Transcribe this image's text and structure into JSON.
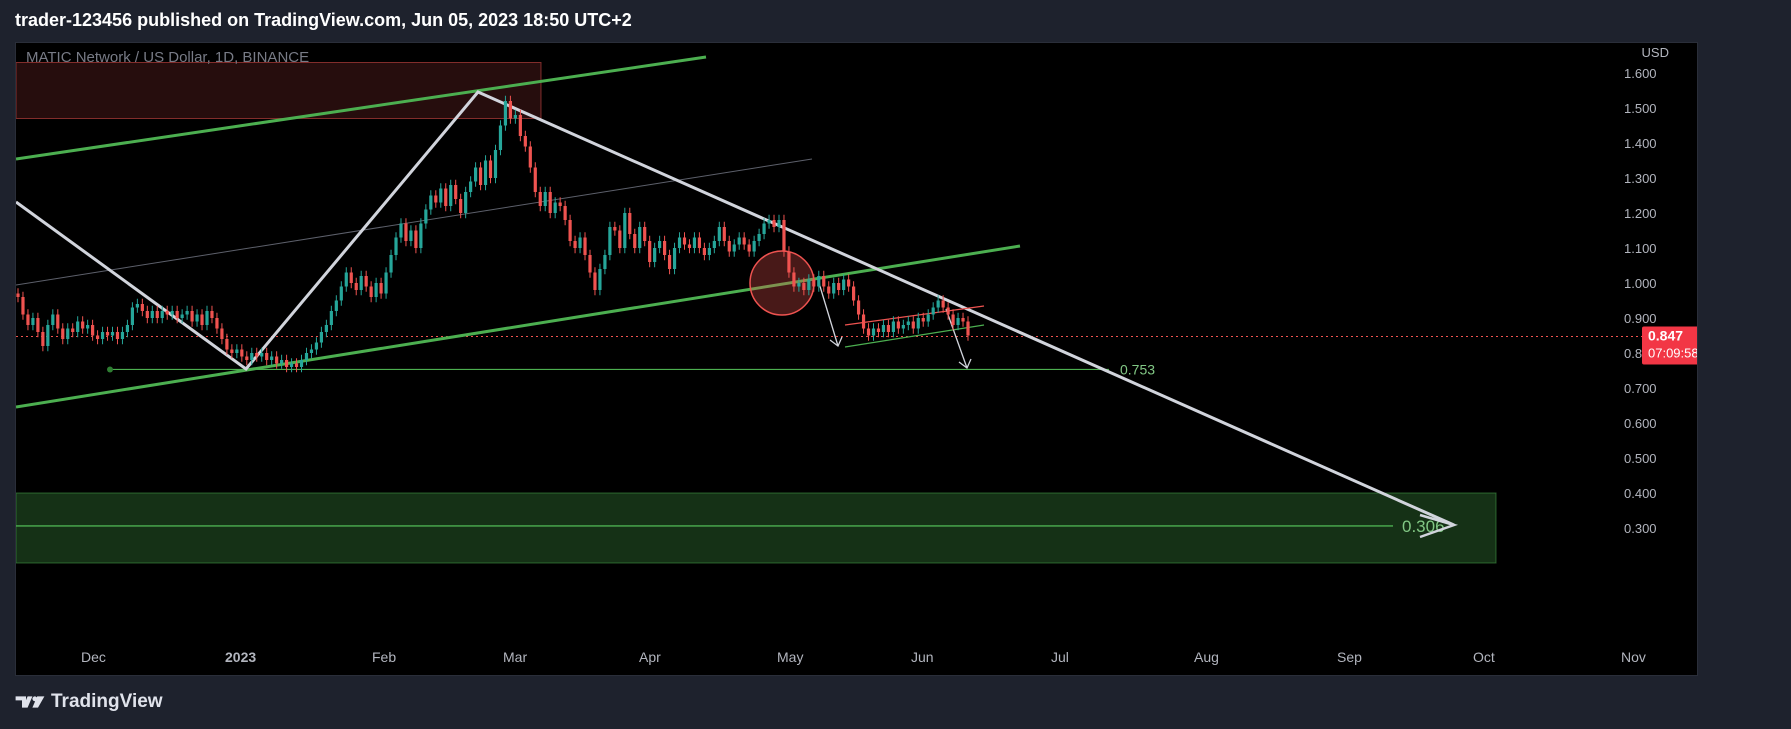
{
  "header": {
    "published": "trader-123456 published on TradingView.com, Jun 05, 2023 18:50 UTC+2"
  },
  "footer": {
    "brand": "TradingView",
    "logo_icon": "tradingview-logo-icon"
  },
  "chart_data": {
    "type": "candlestick",
    "symbol_title": "MATIC Network / US Dollar, 1D, BINANCE",
    "currency": "USD",
    "y_ticks": [
      "1.600",
      "1.500",
      "1.400",
      "1.300",
      "1.200",
      "1.100",
      "1.000",
      "0.900",
      "0.800",
      "0.700",
      "0.600",
      "0.500",
      "0.400",
      "0.300"
    ],
    "y_range": [
      0.2,
      1.65
    ],
    "x_ticks": [
      "Dec",
      "2023",
      "Feb",
      "Mar",
      "Apr",
      "May",
      "Jun",
      "Jul",
      "Aug",
      "Sep",
      "Oct",
      "Nov"
    ],
    "grid": false,
    "last_price": {
      "value": "0.847",
      "countdown": "07:09:58"
    },
    "levels": [
      {
        "label": "0.753",
        "value": 0.753
      },
      {
        "label": "0.306",
        "value": 0.306
      }
    ],
    "zones": [
      {
        "name": "resistance-zone",
        "from": 1.47,
        "to": 1.63
      },
      {
        "name": "support-zone",
        "from": 0.2,
        "to": 0.4
      }
    ],
    "colors": {
      "up": "#26a69a",
      "down": "#ef5350",
      "channel": "#4caf50",
      "trend": "#d1d4dc",
      "price_label": "#f23645"
    },
    "candles": [
      [
        0.97,
        0.96
      ],
      [
        0.96,
        0.91
      ],
      [
        0.91,
        0.88
      ],
      [
        0.88,
        0.9
      ],
      [
        0.9,
        0.86
      ],
      [
        0.86,
        0.82
      ],
      [
        0.82,
        0.88
      ],
      [
        0.88,
        0.91
      ],
      [
        0.91,
        0.87
      ],
      [
        0.87,
        0.84
      ],
      [
        0.84,
        0.87
      ],
      [
        0.87,
        0.86
      ],
      [
        0.86,
        0.89
      ],
      [
        0.89,
        0.87
      ],
      [
        0.87,
        0.88
      ],
      [
        0.88,
        0.85
      ],
      [
        0.85,
        0.84
      ],
      [
        0.84,
        0.86
      ],
      [
        0.86,
        0.85
      ],
      [
        0.85,
        0.86
      ],
      [
        0.86,
        0.84
      ],
      [
        0.84,
        0.86
      ],
      [
        0.86,
        0.88
      ],
      [
        0.88,
        0.93
      ],
      [
        0.93,
        0.94
      ],
      [
        0.94,
        0.92
      ],
      [
        0.92,
        0.9
      ],
      [
        0.9,
        0.92
      ],
      [
        0.92,
        0.9
      ],
      [
        0.9,
        0.92
      ],
      [
        0.92,
        0.91
      ],
      [
        0.91,
        0.92
      ],
      [
        0.92,
        0.9
      ],
      [
        0.9,
        0.91
      ],
      [
        0.91,
        0.92
      ],
      [
        0.92,
        0.89
      ],
      [
        0.89,
        0.91
      ],
      [
        0.91,
        0.88
      ],
      [
        0.88,
        0.92
      ],
      [
        0.92,
        0.9
      ],
      [
        0.9,
        0.87
      ],
      [
        0.87,
        0.84
      ],
      [
        0.84,
        0.81
      ],
      [
        0.81,
        0.8
      ],
      [
        0.8,
        0.81
      ],
      [
        0.81,
        0.79
      ],
      [
        0.79,
        0.78
      ],
      [
        0.78,
        0.8
      ],
      [
        0.8,
        0.79
      ],
      [
        0.79,
        0.8
      ],
      [
        0.8,
        0.78
      ],
      [
        0.78,
        0.79
      ],
      [
        0.79,
        0.77
      ],
      [
        0.77,
        0.78
      ],
      [
        0.78,
        0.76
      ],
      [
        0.76,
        0.77
      ],
      [
        0.77,
        0.76
      ],
      [
        0.76,
        0.78
      ],
      [
        0.78,
        0.8
      ],
      [
        0.8,
        0.81
      ],
      [
        0.81,
        0.83
      ],
      [
        0.83,
        0.86
      ],
      [
        0.86,
        0.88
      ],
      [
        0.88,
        0.92
      ],
      [
        0.92,
        0.95
      ],
      [
        0.95,
        0.99
      ],
      [
        0.99,
        1.03
      ],
      [
        1.03,
        1.0
      ],
      [
        1.0,
        0.98
      ],
      [
        0.98,
        1.02
      ],
      [
        1.02,
        0.99
      ],
      [
        0.99,
        0.96
      ],
      [
        0.96,
        1.0
      ],
      [
        1.0,
        0.97
      ],
      [
        0.97,
        1.03
      ],
      [
        1.03,
        1.08
      ],
      [
        1.08,
        1.13
      ],
      [
        1.13,
        1.17
      ],
      [
        1.17,
        1.12
      ],
      [
        1.12,
        1.15
      ],
      [
        1.15,
        1.1
      ],
      [
        1.1,
        1.17
      ],
      [
        1.17,
        1.21
      ],
      [
        1.21,
        1.25
      ],
      [
        1.25,
        1.23
      ],
      [
        1.23,
        1.27
      ],
      [
        1.27,
        1.22
      ],
      [
        1.22,
        1.28
      ],
      [
        1.28,
        1.24
      ],
      [
        1.24,
        1.2
      ],
      [
        1.2,
        1.26
      ],
      [
        1.26,
        1.29
      ],
      [
        1.29,
        1.33
      ],
      [
        1.33,
        1.28
      ],
      [
        1.28,
        1.35
      ],
      [
        1.35,
        1.3
      ],
      [
        1.3,
        1.38
      ],
      [
        1.38,
        1.45
      ],
      [
        1.45,
        1.52
      ],
      [
        1.52,
        1.47
      ],
      [
        1.47,
        1.48
      ],
      [
        1.48,
        1.42
      ],
      [
        1.42,
        1.39
      ],
      [
        1.39,
        1.33
      ],
      [
        1.33,
        1.26
      ],
      [
        1.26,
        1.22
      ],
      [
        1.22,
        1.26
      ],
      [
        1.26,
        1.2
      ],
      [
        1.2,
        1.23
      ],
      [
        1.23,
        1.22
      ],
      [
        1.22,
        1.18
      ],
      [
        1.18,
        1.12
      ],
      [
        1.12,
        1.1
      ],
      [
        1.1,
        1.13
      ],
      [
        1.13,
        1.08
      ],
      [
        1.08,
        1.03
      ],
      [
        1.03,
        0.98
      ],
      [
        0.98,
        1.04
      ],
      [
        1.04,
        1.08
      ],
      [
        1.08,
        1.16
      ],
      [
        1.16,
        1.15
      ],
      [
        1.15,
        1.1
      ],
      [
        1.1,
        1.2
      ],
      [
        1.2,
        1.14
      ],
      [
        1.14,
        1.1
      ],
      [
        1.1,
        1.16
      ],
      [
        1.16,
        1.12
      ],
      [
        1.12,
        1.06
      ],
      [
        1.06,
        1.1
      ],
      [
        1.1,
        1.12
      ],
      [
        1.12,
        1.08
      ],
      [
        1.08,
        1.04
      ],
      [
        1.04,
        1.1
      ],
      [
        1.1,
        1.13
      ],
      [
        1.13,
        1.11
      ],
      [
        1.11,
        1.1
      ],
      [
        1.1,
        1.13
      ],
      [
        1.13,
        1.1
      ],
      [
        1.1,
        1.08
      ],
      [
        1.08,
        1.1
      ],
      [
        1.1,
        1.12
      ],
      [
        1.12,
        1.16
      ],
      [
        1.16,
        1.12
      ],
      [
        1.12,
        1.09
      ],
      [
        1.09,
        1.11
      ],
      [
        1.11,
        1.13
      ],
      [
        1.13,
        1.11
      ],
      [
        1.11,
        1.09
      ],
      [
        1.09,
        1.12
      ],
      [
        1.12,
        1.14
      ],
      [
        1.14,
        1.17
      ],
      [
        1.17,
        1.18
      ],
      [
        1.18,
        1.16
      ],
      [
        1.16,
        1.18
      ],
      [
        1.18,
        1.09
      ],
      [
        1.09,
        1.03
      ],
      [
        1.03,
        0.99
      ],
      [
        0.99,
        1.0
      ],
      [
        1.0,
        0.98
      ],
      [
        0.98,
        1.01
      ],
      [
        1.01,
        0.99
      ],
      [
        0.99,
        1.02
      ],
      [
        1.02,
        0.99
      ],
      [
        0.99,
        0.97
      ],
      [
        0.97,
        1.0
      ],
      [
        1.0,
        0.98
      ],
      [
        0.98,
        1.01
      ],
      [
        1.01,
        0.99
      ],
      [
        0.99,
        0.95
      ],
      [
        0.95,
        0.91
      ],
      [
        0.91,
        0.87
      ],
      [
        0.87,
        0.85
      ],
      [
        0.85,
        0.87
      ],
      [
        0.87,
        0.86
      ],
      [
        0.86,
        0.88
      ],
      [
        0.88,
        0.86
      ],
      [
        0.86,
        0.89
      ],
      [
        0.89,
        0.87
      ],
      [
        0.87,
        0.88
      ],
      [
        0.88,
        0.89
      ],
      [
        0.89,
        0.87
      ],
      [
        0.87,
        0.9
      ],
      [
        0.9,
        0.89
      ],
      [
        0.89,
        0.91
      ],
      [
        0.91,
        0.93
      ],
      [
        0.93,
        0.95
      ],
      [
        0.95,
        0.93
      ],
      [
        0.93,
        0.91
      ],
      [
        0.91,
        0.88
      ],
      [
        0.88,
        0.9
      ],
      [
        0.9,
        0.89
      ],
      [
        0.89,
        0.85
      ]
    ]
  }
}
